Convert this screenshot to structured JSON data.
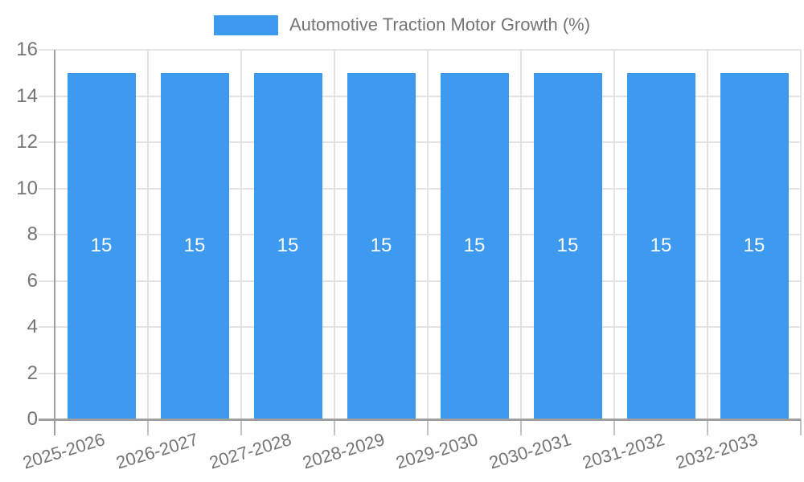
{
  "legend": {
    "label": "Automotive Traction Motor Growth (%)"
  },
  "chart_data": {
    "type": "bar",
    "title": "",
    "legend_label": "Automotive Traction Motor Growth (%)",
    "legend_position": "top-center",
    "categories": [
      "2025-2026",
      "2026-2027",
      "2027-2028",
      "2028-2029",
      "2029-2030",
      "2030-2031",
      "2031-2032",
      "2032-2033"
    ],
    "values": [
      15,
      15,
      15,
      15,
      15,
      15,
      15,
      15
    ],
    "bar_labels": [
      "15",
      "15",
      "15",
      "15",
      "15",
      "15",
      "15",
      "15"
    ],
    "xlabel": "",
    "ylabel": "",
    "ylim": [
      0,
      16
    ],
    "ytick_step": 2,
    "ytick_labels": [
      "0",
      "2",
      "4",
      "6",
      "8",
      "10",
      "12",
      "14",
      "16"
    ],
    "grid": true,
    "x_label_rotation_deg": -17,
    "colors": {
      "bar": "#3D9AEE",
      "bar_label": "#ffffff",
      "axis_line": "#9e9e9e",
      "tick_line": "#c2c2c2",
      "grid_line": "#e4e4e4",
      "text": "#757575"
    }
  }
}
